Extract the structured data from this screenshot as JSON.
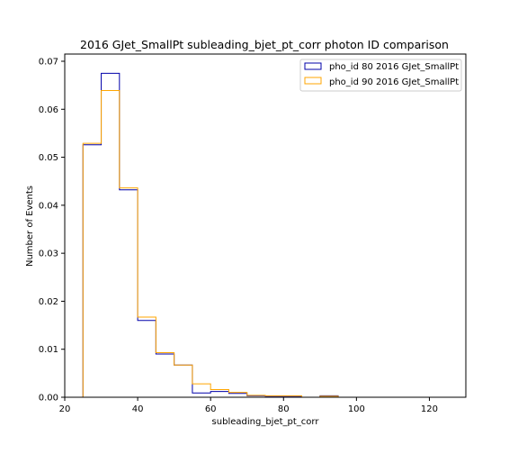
{
  "chart_data": {
    "type": "histogram",
    "title": "2016 GJet_SmallPt subleading_bjet_pt_corr photon ID comparison",
    "xlabel": "subleading_bjet_pt_corr",
    "ylabel": "Number of Events",
    "xlim": [
      20,
      130
    ],
    "ylim": [
      0,
      0.0715
    ],
    "xticks": [
      20,
      40,
      60,
      80,
      100,
      120
    ],
    "xtick_labels": [
      "20",
      "40",
      "60",
      "80",
      "100",
      "120"
    ],
    "yticks": [
      0,
      0.01,
      0.02,
      0.03,
      0.04,
      0.05,
      0.06,
      0.07
    ],
    "ytick_labels": [
      "0.00",
      "0.01",
      "0.02",
      "0.03",
      "0.04",
      "0.05",
      "0.06",
      "0.07"
    ],
    "grid": false,
    "legend_position": "top-right",
    "bin_edges": [
      25,
      30,
      35,
      40,
      45,
      50,
      55,
      60,
      65,
      70,
      75,
      80,
      85,
      90,
      95
    ],
    "series": [
      {
        "name": "pho_id 80 2016 GJet_SmallPt",
        "color": "#0000aa",
        "values": [
          0.0526,
          0.0675,
          0.0432,
          0.016,
          0.009,
          0.0067,
          0.0009,
          0.0012,
          0.0008,
          0.0003,
          0.0002,
          0.0002,
          0.0,
          0.0003
        ]
      },
      {
        "name": "pho_id 90 2016 GJet_SmallPt",
        "color": "#ffa500",
        "values": [
          0.0529,
          0.0639,
          0.0436,
          0.0167,
          0.0093,
          0.0067,
          0.0028,
          0.0016,
          0.001,
          0.0004,
          0.0003,
          0.0003,
          0.0,
          0.0002
        ]
      }
    ]
  }
}
